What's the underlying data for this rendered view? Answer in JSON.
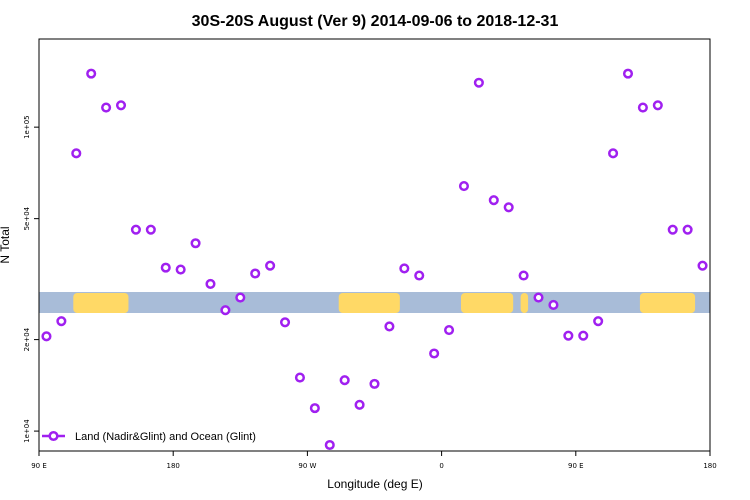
{
  "chart_data": {
    "type": "scatter",
    "title": "30S-20S August (Ver 9)   2014-09-06 to 2018-12-31",
    "xlabel": "Longitude (deg E)",
    "ylabel": "N Total",
    "x_scale": "linear",
    "y_scale": "log",
    "xlim": [
      90,
      540
    ],
    "ylim": [
      8600,
      195000
    ],
    "x_ticks": [
      {
        "value": 90,
        "label": "90 E"
      },
      {
        "value": 180,
        "label": "180"
      },
      {
        "value": 270,
        "label": "90 W"
      },
      {
        "value": 360,
        "label": "0"
      },
      {
        "value": 450,
        "label": "90 E"
      },
      {
        "value": 540,
        "label": "180"
      }
    ],
    "y_ticks": [
      {
        "value": 10000,
        "label": "1e+04"
      },
      {
        "value": 20000,
        "label": "2e+04"
      },
      {
        "value": 50000,
        "label": "5e+04"
      },
      {
        "value": 100000,
        "label": "1e+05"
      }
    ],
    "series": [
      {
        "name": "Land (Nadir&Glint) and Ocean (Glint)",
        "color": "#a020f0",
        "x": [
          95,
          105,
          115,
          125,
          135,
          145,
          155,
          165,
          175,
          185,
          195,
          205,
          215,
          225,
          235,
          245,
          255,
          265,
          275,
          285,
          295,
          305,
          315,
          325,
          335,
          345,
          355,
          365,
          375,
          385,
          395,
          405,
          415,
          425,
          435,
          445,
          455,
          465,
          475,
          485,
          495,
          505,
          515,
          525,
          535
        ],
        "y": [
          20500,
          23000,
          82000,
          150000,
          116000,
          118000,
          46000,
          46000,
          34500,
          34000,
          41500,
          30500,
          25000,
          27500,
          33000,
          35000,
          22800,
          15000,
          11900,
          9000,
          14700,
          12200,
          14300,
          22100,
          34300,
          32500,
          18000,
          21500,
          64000,
          140000,
          57500,
          54500,
          32500,
          27500,
          26000,
          20600,
          20600,
          23000,
          82000,
          150000,
          116000,
          118000,
          46000,
          46000,
          35000
        ]
      }
    ],
    "legend": {
      "placement": "bottom-left",
      "label": "Land (Nadir&Glint) and Ocean (Glint)"
    },
    "background_band": {
      "description": "surface type strip along longitude",
      "land_color": "#ffd966",
      "ocean_color": "#a8bcd8",
      "land_ranges": [
        [
          113,
          150
        ],
        [
          291,
          332
        ],
        [
          373,
          408
        ],
        [
          413,
          418
        ],
        [
          493,
          530
        ]
      ]
    },
    "grid": false
  }
}
